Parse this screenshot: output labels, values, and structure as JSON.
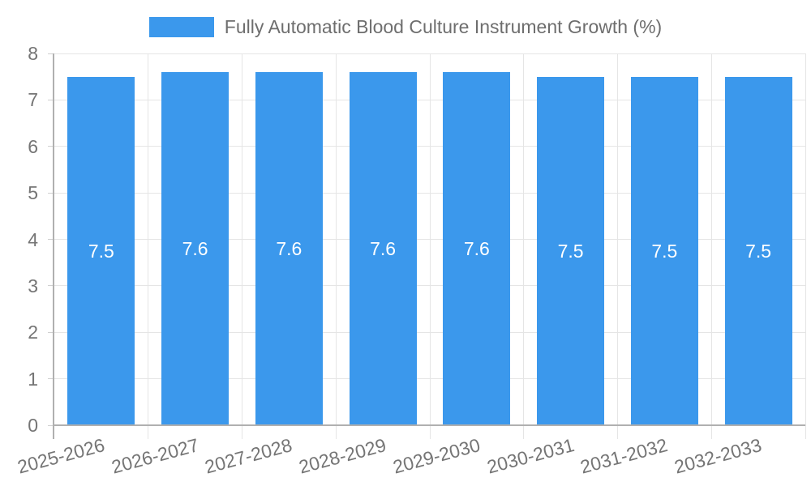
{
  "legend": {
    "label": "Fully Automatic Blood Culture Instrument Growth (%)"
  },
  "colors": {
    "bar": "#3b98ec",
    "grid": "#e5e5e5",
    "axis": "#b0b0b0",
    "tick": "#d0d0d0",
    "text": "#757575",
    "legend_text": "#6e6e6e",
    "value_text": "#ffffff",
    "background": "#ffffff"
  },
  "chart_data": {
    "type": "bar",
    "title": "Fully Automatic Blood Culture Instrument Growth (%)",
    "categories": [
      "2025-2026",
      "2026-2027",
      "2027-2028",
      "2028-2029",
      "2029-2030",
      "2030-2031",
      "2031-2032",
      "2032-2033"
    ],
    "values": [
      7.5,
      7.6,
      7.6,
      7.6,
      7.6,
      7.5,
      7.5,
      7.5
    ],
    "bar_labels": [
      "7.5",
      "7.6",
      "7.6",
      "7.6",
      "7.6",
      "7.5",
      "7.5",
      "7.5"
    ],
    "xlabel": "",
    "ylabel": "",
    "ylim": [
      0,
      8
    ],
    "yticks": [
      0,
      1,
      2,
      3,
      4,
      5,
      6,
      7,
      8
    ],
    "grid": true,
    "legend_position": "top-center",
    "x_tick_rotation_deg": -15
  }
}
